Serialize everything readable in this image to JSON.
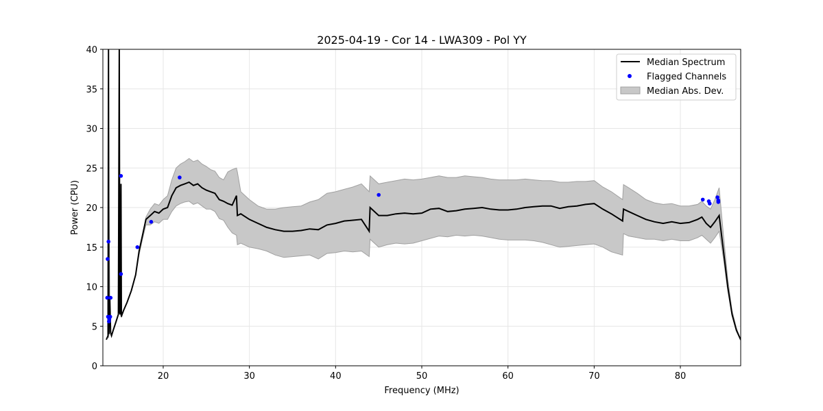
{
  "chart_data": {
    "type": "line",
    "title": "2025-04-19 - Cor 14 - LWA309 - Pol YY",
    "xlabel": "Frequency (MHz)",
    "ylabel": "Power (CPU)",
    "xlim": [
      13.0,
      87.0
    ],
    "ylim": [
      0,
      40
    ],
    "xticks": [
      20,
      30,
      40,
      50,
      60,
      70,
      80
    ],
    "yticks": [
      0,
      5,
      10,
      15,
      20,
      25,
      30,
      35,
      40
    ],
    "grid": true,
    "legend_position": "top-right",
    "legend": [
      "Median Spectrum",
      "Flagged Channels",
      "Median Abs. Dev."
    ],
    "colors": {
      "median": "#000000",
      "flagged": "#0000ff",
      "mad_fill": "#c8c8c8",
      "mad_edge": "#a0a0a0"
    },
    "series": [
      {
        "name": "Median Spectrum",
        "x": [
          13.4,
          13.6,
          13.65,
          13.7,
          13.8,
          13.9,
          14.0,
          14.2,
          14.5,
          14.8,
          14.9,
          14.95,
          15.0,
          15.1,
          15.15,
          15.2,
          15.4,
          15.8,
          16.3,
          16.8,
          17.2,
          17.6,
          18.0,
          18.5,
          19.0,
          19.5,
          20.0,
          20.5,
          21.0,
          21.5,
          22.0,
          22.5,
          23.0,
          23.5,
          24.0,
          24.5,
          25.0,
          25.5,
          26.0,
          26.5,
          27.0,
          27.5,
          28.0,
          28.5,
          28.6,
          29.0,
          30.0,
          31.0,
          32.0,
          33.0,
          34.0,
          35.0,
          36.0,
          37.0,
          38.0,
          39.0,
          40.0,
          41.0,
          42.0,
          43.0,
          43.9,
          44.0,
          45.0,
          46.0,
          47.0,
          48.0,
          49.0,
          50.0,
          51.0,
          52.0,
          53.0,
          54.0,
          55.0,
          56.0,
          57.0,
          58.0,
          59.0,
          60.0,
          61.0,
          62.0,
          63.0,
          64.0,
          65.0,
          66.0,
          67.0,
          68.0,
          69.0,
          70.0,
          71.0,
          72.0,
          73.3,
          73.4,
          74.0,
          75.0,
          76.0,
          77.0,
          78.0,
          79.0,
          80.0,
          81.0,
          82.0,
          82.5,
          83.0,
          83.5,
          84.0,
          84.5,
          85.0,
          85.5,
          86.0,
          86.5,
          87.0
        ],
        "values": [
          3.3,
          3.8,
          40.0,
          4.0,
          8.5,
          4.2,
          3.8,
          4.5,
          5.5,
          6.5,
          40.0,
          6.8,
          6.5,
          23.0,
          6.2,
          6.4,
          7.0,
          8.0,
          9.5,
          11.5,
          14.5,
          16.5,
          18.5,
          19.0,
          19.5,
          19.3,
          19.8,
          20.0,
          21.5,
          22.5,
          22.8,
          23.0,
          23.2,
          22.8,
          23.0,
          22.5,
          22.2,
          22.0,
          21.8,
          21.0,
          20.8,
          20.5,
          20.3,
          21.5,
          19.0,
          19.2,
          18.5,
          18.0,
          17.5,
          17.2,
          17.0,
          17.0,
          17.1,
          17.3,
          17.2,
          17.8,
          18.0,
          18.3,
          18.4,
          18.5,
          17.0,
          20.0,
          19.0,
          19.0,
          19.2,
          19.3,
          19.2,
          19.3,
          19.8,
          19.9,
          19.5,
          19.6,
          19.8,
          19.9,
          20.0,
          19.8,
          19.7,
          19.7,
          19.8,
          20.0,
          20.1,
          20.2,
          20.2,
          19.9,
          20.1,
          20.2,
          20.4,
          20.5,
          19.8,
          19.2,
          18.3,
          19.8,
          19.5,
          19.0,
          18.5,
          18.2,
          18.0,
          18.2,
          18.0,
          18.1,
          18.5,
          18.8,
          18.0,
          17.5,
          18.2,
          19.0,
          14.5,
          10.0,
          6.5,
          4.5,
          3.3
        ]
      },
      {
        "name": "Median Abs. Dev.",
        "x": [
          13.4,
          13.6,
          13.65,
          13.7,
          13.8,
          13.9,
          14.0,
          14.2,
          14.5,
          14.8,
          14.9,
          14.95,
          15.0,
          15.1,
          15.15,
          15.2,
          15.4,
          15.8,
          16.3,
          16.8,
          17.2,
          17.6,
          18.0,
          18.5,
          19.0,
          19.5,
          20.0,
          20.5,
          21.0,
          21.5,
          22.0,
          22.5,
          23.0,
          23.5,
          24.0,
          24.5,
          25.0,
          25.5,
          26.0,
          26.5,
          27.0,
          27.5,
          28.0,
          28.5,
          28.6,
          29.0,
          30.0,
          31.0,
          32.0,
          33.0,
          34.0,
          35.0,
          36.0,
          37.0,
          38.0,
          39.0,
          40.0,
          41.0,
          42.0,
          43.0,
          43.9,
          44.0,
          45.0,
          46.0,
          47.0,
          48.0,
          49.0,
          50.0,
          51.0,
          52.0,
          53.0,
          54.0,
          55.0,
          56.0,
          57.0,
          58.0,
          59.0,
          60.0,
          61.0,
          62.0,
          63.0,
          64.0,
          65.0,
          66.0,
          67.0,
          68.0,
          69.0,
          70.0,
          71.0,
          72.0,
          73.3,
          73.4,
          74.0,
          75.0,
          76.0,
          77.0,
          78.0,
          79.0,
          80.0,
          81.0,
          82.0,
          82.5,
          83.0,
          83.5,
          84.0,
          84.5,
          85.0,
          85.5,
          86.0,
          86.5,
          87.0
        ],
        "upper": [
          3.3,
          3.8,
          40.0,
          23.0,
          8.5,
          4.2,
          3.8,
          4.5,
          5.5,
          6.5,
          40.0,
          38.5,
          6.5,
          23.0,
          6.2,
          6.4,
          7.0,
          8.0,
          9.5,
          11.5,
          14.5,
          16.5,
          18.8,
          19.8,
          20.5,
          20.3,
          21.0,
          21.5,
          23.5,
          25.0,
          25.5,
          25.8,
          26.2,
          25.8,
          26.0,
          25.5,
          25.2,
          24.8,
          24.6,
          23.8,
          23.5,
          24.5,
          24.8,
          25.0,
          24.5,
          22.0,
          21.0,
          20.2,
          19.8,
          19.8,
          20.0,
          20.1,
          20.2,
          20.7,
          21.0,
          21.8,
          22.0,
          22.3,
          22.6,
          23.0,
          22.0,
          24.0,
          23.0,
          23.2,
          23.4,
          23.6,
          23.5,
          23.6,
          23.8,
          24.0,
          23.8,
          23.8,
          24.0,
          23.9,
          23.8,
          23.6,
          23.5,
          23.5,
          23.5,
          23.6,
          23.5,
          23.4,
          23.4,
          23.2,
          23.2,
          23.3,
          23.3,
          23.4,
          22.6,
          22.0,
          21.0,
          22.9,
          22.5,
          21.8,
          21.0,
          20.6,
          20.4,
          20.5,
          20.2,
          20.2,
          20.4,
          20.8,
          20.2,
          19.8,
          21.0,
          22.5,
          16.5,
          11.0,
          7.0,
          4.8,
          3.3
        ],
        "lower": [
          3.3,
          3.8,
          3.5,
          3.9,
          4.5,
          4.0,
          3.8,
          4.5,
          5.5,
          6.5,
          6.8,
          6.6,
          6.5,
          6.3,
          6.1,
          6.4,
          7.0,
          8.0,
          9.5,
          11.5,
          14.0,
          16.0,
          17.8,
          17.8,
          18.2,
          18.0,
          18.5,
          18.5,
          19.5,
          20.2,
          20.5,
          20.7,
          20.8,
          20.4,
          20.6,
          20.2,
          19.8,
          19.8,
          19.5,
          18.6,
          18.4,
          17.5,
          16.8,
          16.5,
          15.3,
          15.5,
          15.0,
          14.8,
          14.5,
          14.0,
          13.7,
          13.8,
          13.9,
          14.0,
          13.5,
          14.2,
          14.3,
          14.5,
          14.4,
          14.5,
          13.8,
          16.0,
          15.0,
          15.3,
          15.5,
          15.4,
          15.5,
          15.8,
          16.1,
          16.4,
          16.3,
          16.5,
          16.4,
          16.5,
          16.4,
          16.2,
          16.0,
          15.9,
          15.9,
          15.9,
          15.8,
          15.6,
          15.3,
          15.0,
          15.1,
          15.2,
          15.3,
          15.4,
          15.0,
          14.4,
          14.0,
          16.7,
          16.4,
          16.2,
          16.0,
          16.0,
          15.8,
          16.0,
          15.8,
          15.8,
          16.2,
          16.5,
          16.0,
          15.5,
          16.2,
          17.0,
          13.5,
          9.5,
          6.3,
          4.4,
          3.2
        ]
      },
      {
        "name": "Flagged Channels",
        "points": [
          [
            13.55,
            13.5
          ],
          [
            13.5,
            8.6
          ],
          [
            13.65,
            15.7
          ],
          [
            13.6,
            6.2
          ],
          [
            13.75,
            5.9
          ],
          [
            13.7,
            5.6
          ],
          [
            13.9,
            8.6
          ],
          [
            13.85,
            6.2
          ],
          [
            15.1,
            24.0
          ],
          [
            15.1,
            11.6
          ],
          [
            17.0,
            15.0
          ],
          [
            18.6,
            18.2
          ],
          [
            21.9,
            23.8
          ],
          [
            45.0,
            21.6
          ],
          [
            82.6,
            21.0
          ],
          [
            83.3,
            20.8
          ],
          [
            83.4,
            20.5
          ],
          [
            84.3,
            21.3
          ],
          [
            84.4,
            20.9
          ],
          [
            84.4,
            20.7
          ]
        ]
      }
    ]
  }
}
